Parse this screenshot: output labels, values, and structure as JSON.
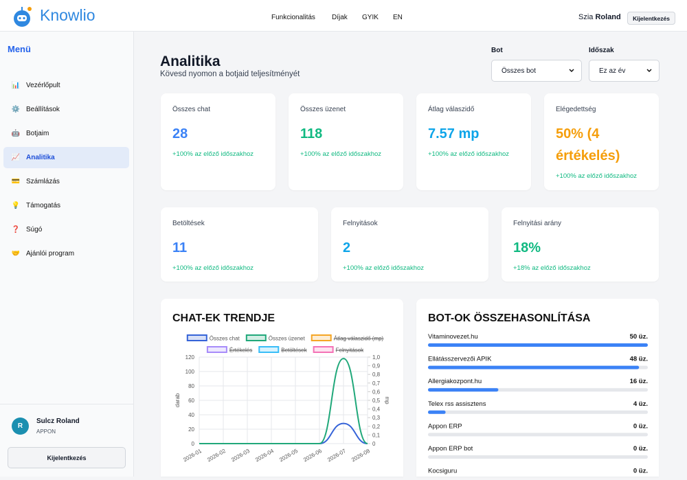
{
  "header": {
    "brand": "Knowlio",
    "nav": [
      "Funkcionalitás",
      "Díjak",
      "GYIK",
      "EN"
    ],
    "greeting": "Szia",
    "user": "Roland",
    "logout": "Kijelentkezés"
  },
  "sidebar": {
    "title": "Menü",
    "items": [
      {
        "icon": "📊",
        "label": "Vezérlőpult"
      },
      {
        "icon": "⚙️",
        "label": "Beállítások"
      },
      {
        "icon": "🤖",
        "label": "Botjaim"
      },
      {
        "icon": "📈",
        "label": "Analitika",
        "active": true
      },
      {
        "icon": "💳",
        "label": "Számlázás"
      },
      {
        "icon": "💡",
        "label": "Támogatás"
      },
      {
        "icon": "❓",
        "label": "Súgó"
      },
      {
        "icon": "🤝",
        "label": "Ajánlói program"
      }
    ],
    "user": {
      "initial": "R",
      "name": "Sulcz Roland",
      "org": "APPON"
    },
    "logout": "Kijelentkezés"
  },
  "page": {
    "title": "Analitika",
    "subtitle": "Kövesd nyomon a botjaid teljesítményét",
    "filters": [
      {
        "label": "Bot",
        "value": "Összes bot"
      },
      {
        "label": "Időszak",
        "value": "Ez az év"
      }
    ]
  },
  "stats": [
    [
      {
        "label": "Összes chat",
        "value": "28",
        "change": "+100% az előző időszakhoz",
        "color": "#3b82f6"
      },
      {
        "label": "Összes üzenet",
        "value": "118",
        "change": "+100% az előző időszakhoz",
        "color": "#10b981"
      },
      {
        "label": "Átlag válaszidő",
        "value": "7.57 mp",
        "change": "+100% az előző időszakhoz",
        "color": "#0ea5e9"
      },
      {
        "label": "Elégedettség",
        "value": "50% (4 értékelés)",
        "change": "+100% az előző időszakhoz",
        "color": "#f59e0b"
      }
    ],
    [
      {
        "label": "Betöltések",
        "value": "11",
        "change": "+100% az előző időszakhoz",
        "color": "#3b82f6"
      },
      {
        "label": "Felnyitások",
        "value": "2",
        "change": "+100% az előző időszakhoz",
        "color": "#0ea5e9"
      },
      {
        "label": "Felnyitási arány",
        "value": "18%",
        "change": "+18% az előző időszakhoz",
        "color": "#10b981"
      }
    ]
  ],
  "chart_data": [
    {
      "type": "line",
      "title": "CHAT-EK TRENDJE",
      "categories": [
        "2026-01",
        "2026-02",
        "2026-03",
        "2026-04",
        "2026-05",
        "2026-06",
        "2026-07",
        "2026-08"
      ],
      "series": [
        {
          "name": "Összes chat",
          "color": "#3563d8",
          "values": [
            0,
            0,
            0,
            0,
            0,
            0,
            28,
            0
          ]
        },
        {
          "name": "Összes üzenet",
          "color": "#20a87a",
          "values": [
            0,
            0,
            0,
            0,
            0,
            0,
            118,
            0
          ]
        },
        {
          "name": "Átlag válaszidő (mp)",
          "color": "#f5a524",
          "axis": "y2",
          "hidden": true
        },
        {
          "name": "Értékelés",
          "color": "#a78bfa",
          "hidden": true
        },
        {
          "name": "Betöltések",
          "color": "#38bdf8",
          "hidden": true
        },
        {
          "name": "Felnyitások",
          "color": "#f472b6",
          "hidden": true
        }
      ],
      "ylabel": "darab",
      "y2label": "mp",
      "ylim": [
        0,
        120
      ],
      "yticks": [
        0,
        20,
        40,
        60,
        80,
        100,
        120
      ],
      "y2lim": [
        0,
        1
      ],
      "y2ticks": [
        0,
        {
          "value": 0.1,
          "label": "0,1"
        },
        {
          "value": 0.2,
          "label": "0,2"
        },
        {
          "value": 0.3,
          "label": "0,3"
        },
        {
          "value": 0.4,
          "label": "0,4"
        },
        {
          "value": 0.5,
          "label": "0,5"
        },
        {
          "value": 0.6,
          "label": "0,6"
        },
        {
          "value": 0.7,
          "label": "0,7"
        },
        {
          "value": 0.8,
          "label": "0,8"
        },
        {
          "value": 0.9,
          "label": "0,9"
        },
        {
          "value": 1,
          "label": "1,0"
        }
      ],
      "grid": true
    },
    {
      "type": "bar",
      "orientation": "horizontal",
      "title": "BOT-OK ÖSSZEHASONLÍTÁSA",
      "categories": [
        "Vitaminovezet.hu",
        "Ellátásszervezői APIK",
        "Allergiakozpont.hu",
        "Telex rss assisztens",
        "Appon ERP",
        "Appon ERP bot",
        "Kocsiguru"
      ],
      "values": [
        50,
        48,
        16,
        4,
        0,
        0,
        0
      ],
      "value_labels": [
        "50 üz.",
        "48 üz.",
        "16 üz.",
        "4 üz.",
        "0 üz.",
        "0 üz.",
        "0 üz."
      ],
      "color": "#3b82f6"
    }
  ]
}
